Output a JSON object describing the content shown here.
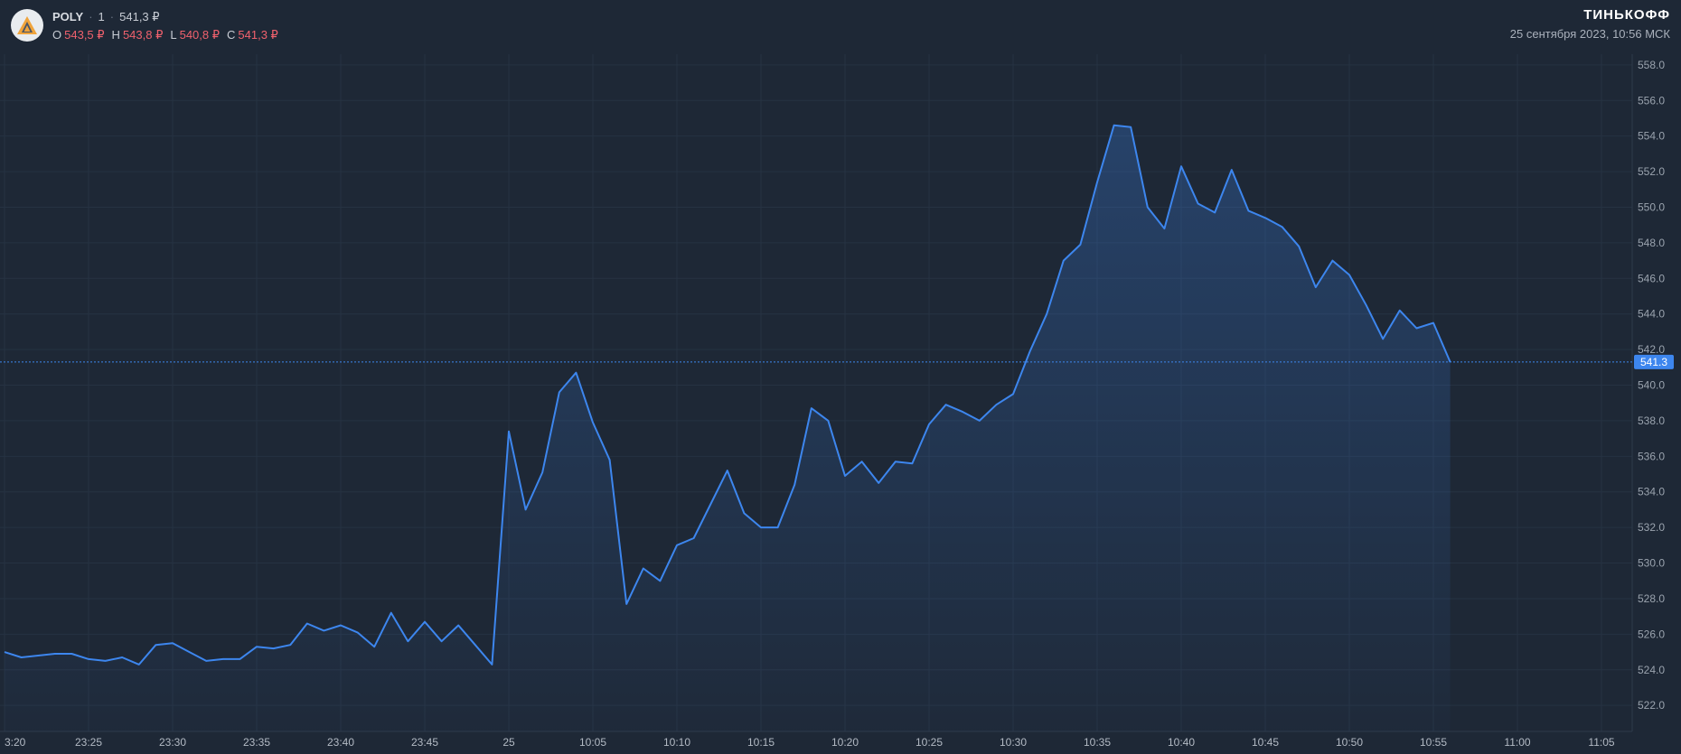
{
  "header": {
    "ticker": "POLY",
    "interval": "1",
    "last_price": "541,3 ₽",
    "ohlc": [
      {
        "key": "O",
        "value": "543,5 ₽"
      },
      {
        "key": "H",
        "value": "543,8 ₽"
      },
      {
        "key": "L",
        "value": "540,8 ₽"
      },
      {
        "key": "C",
        "value": "541,3 ₽"
      }
    ]
  },
  "brand": {
    "name": "ТИНЬКОФФ",
    "datetime": "25 сентября 2023, 10:56 МСК"
  },
  "colors": {
    "background": "#1e2836",
    "line": "#3d86ee",
    "grid": "#263242",
    "price_tag": "#3d86ee",
    "down": "#f0616d"
  },
  "chart_data": {
    "type": "area",
    "title": "",
    "xlabel": "",
    "ylabel": "",
    "ylim": [
      521.4,
      558.5
    ],
    "grid": true,
    "current_price": 541.3,
    "current_price_label": "541.3",
    "y_ticks": [
      "522.0",
      "524.0",
      "526.0",
      "528.0",
      "530.0",
      "532.0",
      "534.0",
      "536.0",
      "538.0",
      "540.0",
      "542.0",
      "544.0",
      "546.0",
      "548.0",
      "550.0",
      "552.0",
      "554.0",
      "556.0",
      "558.0"
    ],
    "x_ticks": [
      {
        "label": "3:20",
        "slot": 0
      },
      {
        "label": "23:25",
        "slot": 5
      },
      {
        "label": "23:30",
        "slot": 10
      },
      {
        "label": "23:35",
        "slot": 15
      },
      {
        "label": "23:40",
        "slot": 20
      },
      {
        "label": "23:45",
        "slot": 25
      },
      {
        "label": "25",
        "slot": 30
      },
      {
        "label": "10:05",
        "slot": 35
      },
      {
        "label": "10:10",
        "slot": 40
      },
      {
        "label": "10:15",
        "slot": 45
      },
      {
        "label": "10:20",
        "slot": 50
      },
      {
        "label": "10:25",
        "slot": 55
      },
      {
        "label": "10:30",
        "slot": 60
      },
      {
        "label": "10:35",
        "slot": 65
      },
      {
        "label": "10:40",
        "slot": 70
      },
      {
        "label": "10:45",
        "slot": 75
      },
      {
        "label": "10:50",
        "slot": 80
      },
      {
        "label": "10:55",
        "slot": 85
      },
      {
        "label": "11:00",
        "slot": 90
      },
      {
        "label": "11:05",
        "slot": 95
      }
    ],
    "series": [
      {
        "values": [
          525.0,
          524.7,
          524.8,
          524.9,
          524.9,
          524.6,
          524.5,
          524.7,
          524.3,
          525.4,
          525.5,
          525.0,
          524.5,
          524.6,
          524.6,
          525.3,
          525.2,
          525.4,
          526.6,
          526.2,
          526.5,
          526.1,
          525.3,
          527.2,
          525.6,
          526.7,
          525.6,
          526.5,
          525.4,
          524.3,
          537.4,
          533.0,
          535.1,
          539.6,
          540.7,
          537.9,
          535.8,
          527.7,
          529.7,
          529.0,
          531.0,
          531.4,
          533.3,
          535.2,
          532.8,
          532.0,
          532.0,
          534.4,
          538.7,
          538.0,
          534.9,
          535.7,
          534.5,
          535.7,
          535.6,
          537.8,
          538.9,
          538.5,
          538.0,
          538.9,
          539.5,
          541.9,
          544.0,
          547.0,
          547.9,
          551.4,
          554.6,
          554.5,
          550.0,
          548.8,
          552.3,
          550.2,
          549.7,
          552.1,
          549.8,
          549.4,
          548.9,
          547.8,
          545.5,
          547.0,
          546.2,
          544.5,
          542.6,
          544.2,
          543.2,
          543.5,
          541.3
        ]
      }
    ]
  }
}
